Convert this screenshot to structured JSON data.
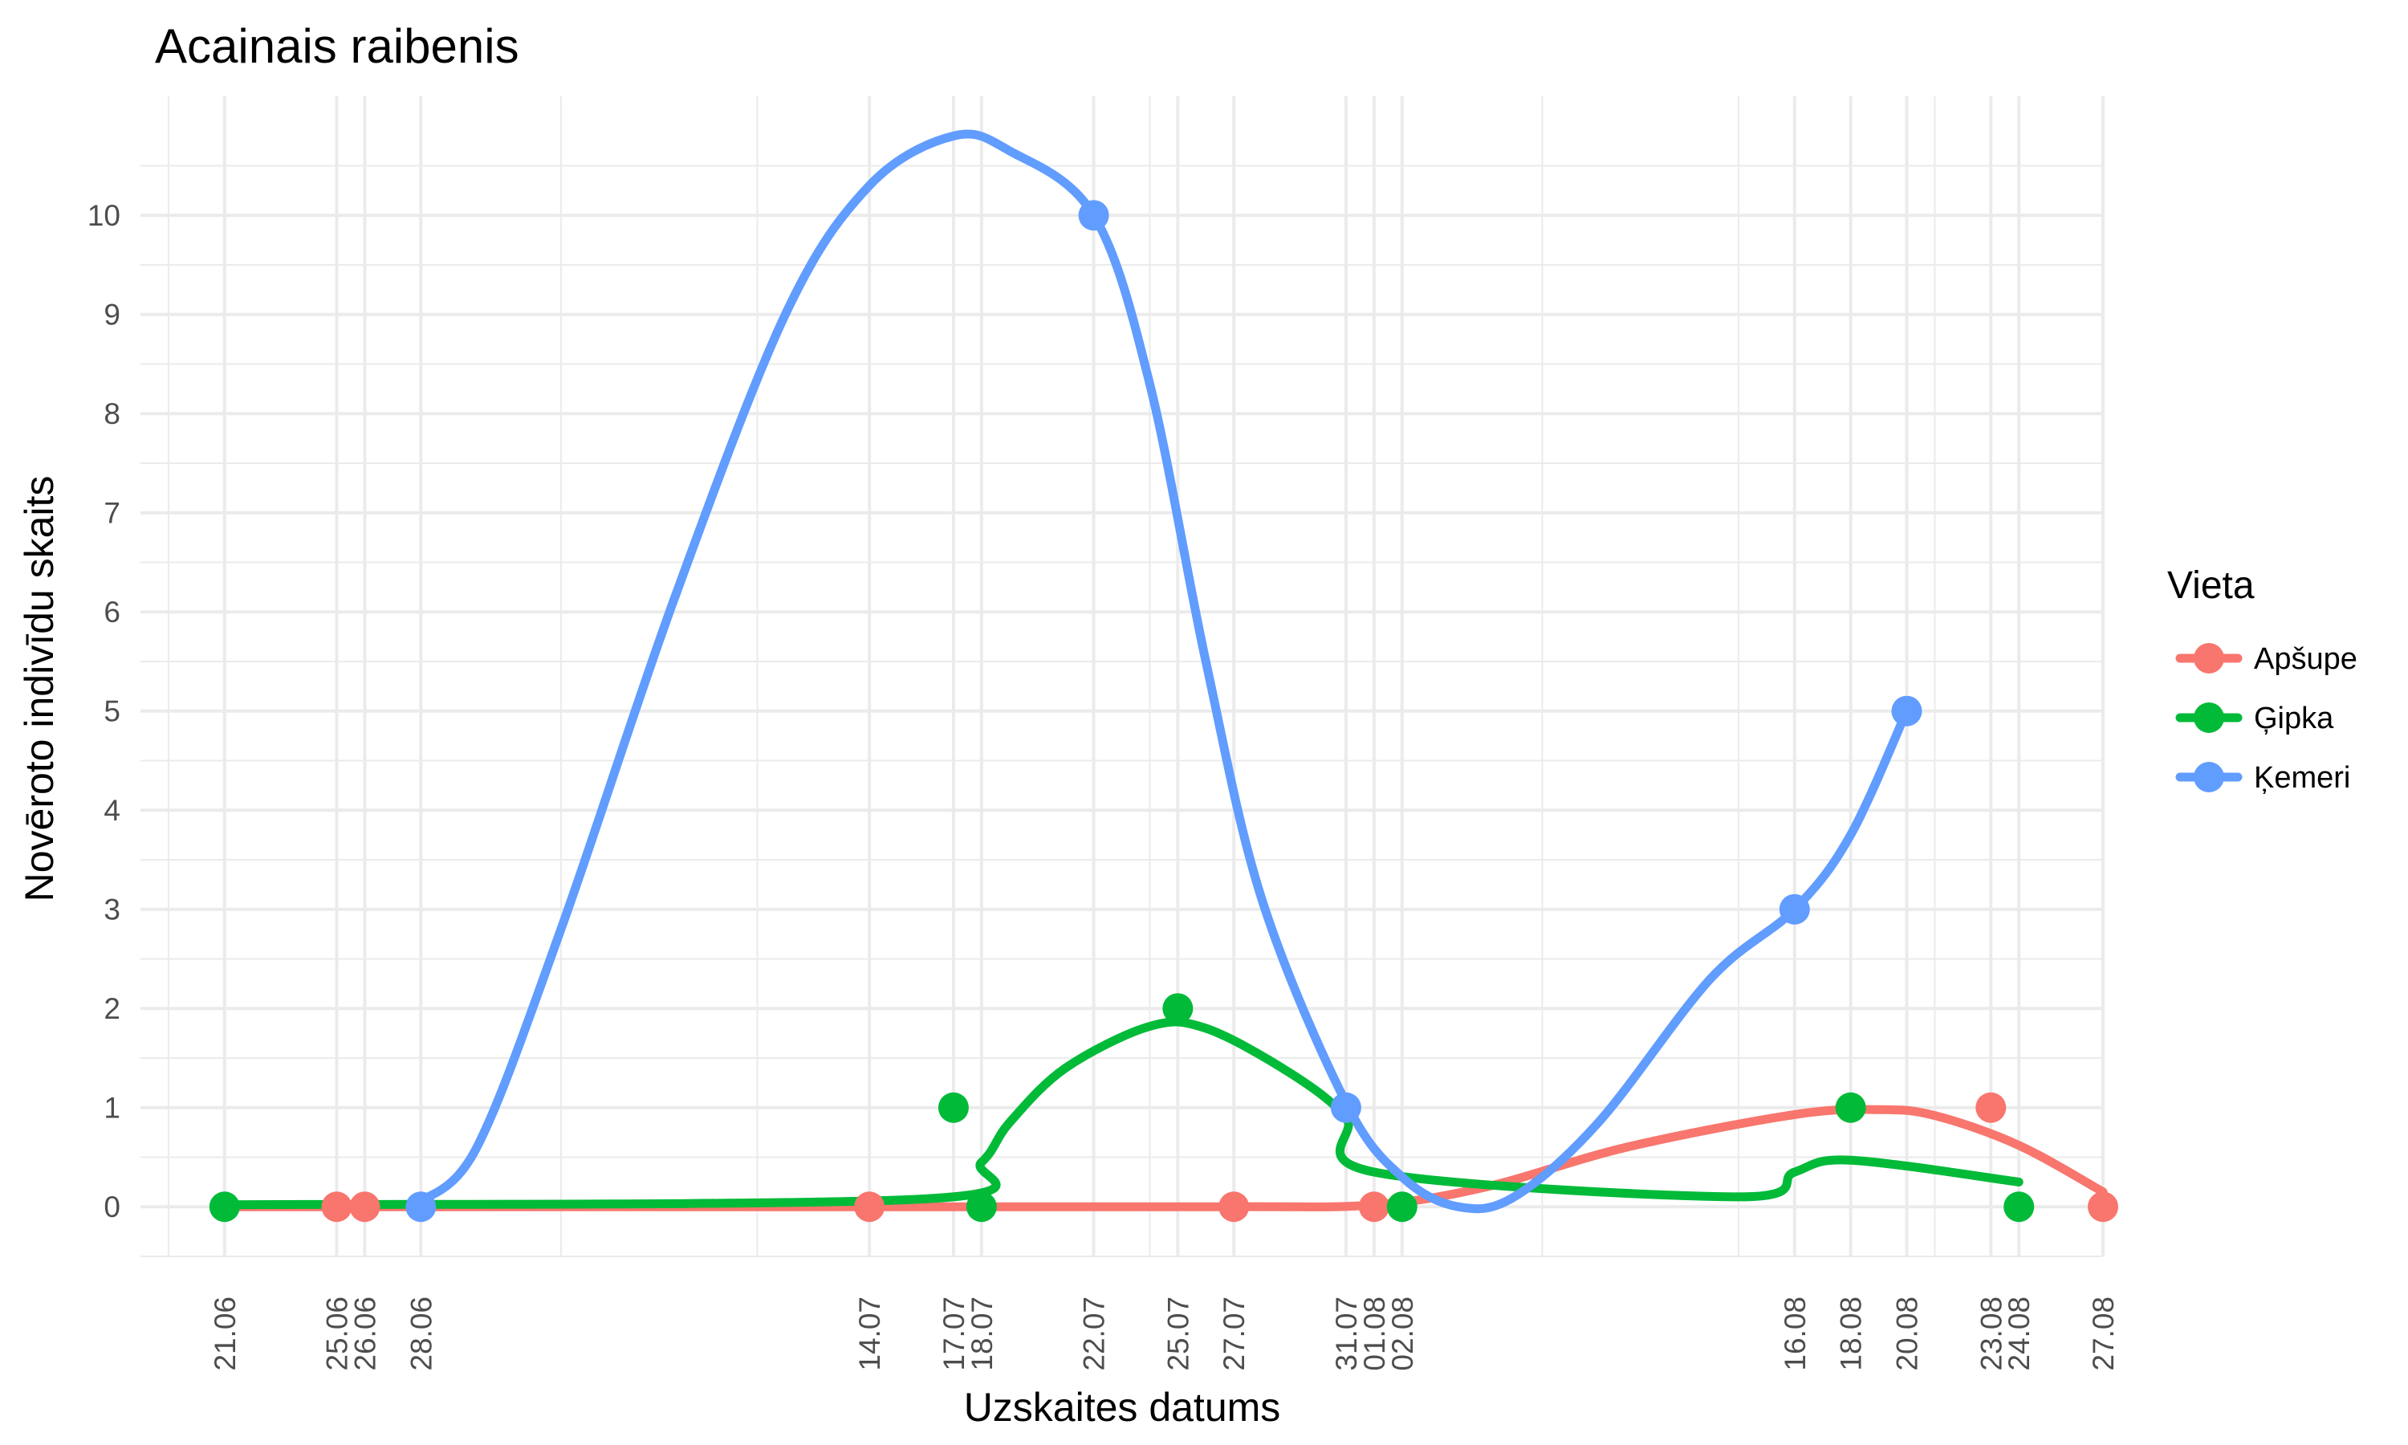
{
  "chart_data": {
    "type": "line",
    "title": "Acainais raibenis",
    "xlabel": "Uzskaites datums",
    "ylabel": "Novēroto indivīdu skaits",
    "ylim": [
      -0.5,
      11.2
    ],
    "y_ticks": [
      0,
      1,
      2,
      3,
      4,
      5,
      6,
      7,
      8,
      9,
      10
    ],
    "x_ticks": [
      "21.06",
      "25.06",
      "26.06",
      "28.06",
      "14.07",
      "17.07",
      "18.07",
      "22.07",
      "25.07",
      "27.07",
      "31.07",
      "01.08",
      "02.08",
      "16.08",
      "18.08",
      "20.08",
      "23.08",
      "24.08",
      "27.08"
    ],
    "grid": true,
    "legend": {
      "title": "Vieta",
      "position": "right"
    },
    "series": [
      {
        "name": "Apšupe",
        "color": "#F8766D",
        "points": [
          {
            "date": "25.06",
            "value": 0
          },
          {
            "date": "26.06",
            "value": 0
          },
          {
            "date": "14.07",
            "value": 0
          },
          {
            "date": "27.07",
            "value": 0
          },
          {
            "date": "01.08",
            "value": 0
          },
          {
            "date": "23.08",
            "value": 1
          },
          {
            "date": "27.08",
            "value": 0
          }
        ],
        "trend": [
          {
            "date": "21.06",
            "value": 0
          },
          {
            "date": "28.06",
            "value": 0
          },
          {
            "date": "14.07",
            "value": 0
          },
          {
            "date": "27.07",
            "value": 0
          },
          {
            "date": "01.08",
            "value": 0.02
          },
          {
            "date": "05.08",
            "value": 0.2
          },
          {
            "date": "10.08",
            "value": 0.6
          },
          {
            "date": "16.08",
            "value": 0.93
          },
          {
            "date": "19.08",
            "value": 0.98
          },
          {
            "date": "21.08",
            "value": 0.92
          },
          {
            "date": "24.08",
            "value": 0.62
          },
          {
            "date": "27.08",
            "value": 0.15
          }
        ]
      },
      {
        "name": "Ģipka",
        "color": "#00BA38",
        "points": [
          {
            "date": "21.06",
            "value": 0
          },
          {
            "date": "17.07",
            "value": 1
          },
          {
            "date": "18.07",
            "value": 0
          },
          {
            "date": "25.07",
            "value": 2
          },
          {
            "date": "02.08",
            "value": 0
          },
          {
            "date": "18.08",
            "value": 1
          },
          {
            "date": "24.08",
            "value": 0
          }
        ],
        "trend": [
          {
            "date": "21.06",
            "value": 0.02
          },
          {
            "date": "16.07",
            "value": 0.08
          },
          {
            "date": "18.07",
            "value": 0.45
          },
          {
            "date": "19.07",
            "value": 0.85
          },
          {
            "date": "21.07",
            "value": 1.4
          },
          {
            "date": "24.07",
            "value": 1.82
          },
          {
            "date": "26.07",
            "value": 1.8
          },
          {
            "date": "29.07",
            "value": 1.35
          },
          {
            "date": "31.07",
            "value": 0.9
          },
          {
            "date": "01.08",
            "value": 0.35
          },
          {
            "date": "14.08",
            "value": 0.1
          },
          {
            "date": "16.08",
            "value": 0.35
          },
          {
            "date": "18.08",
            "value": 0.47
          },
          {
            "date": "24.08",
            "value": 0.25
          }
        ]
      },
      {
        "name": "Ķemeri",
        "color": "#619CFF",
        "points": [
          {
            "date": "28.06",
            "value": 0
          },
          {
            "date": "22.07",
            "value": 10
          },
          {
            "date": "31.07",
            "value": 1
          },
          {
            "date": "16.08",
            "value": 3
          },
          {
            "date": "20.08",
            "value": 5
          }
        ],
        "trend": [
          {
            "date": "28.06",
            "value": 0.05
          },
          {
            "date": "30.06",
            "value": 0.6
          },
          {
            "date": "03.07",
            "value": 2.8
          },
          {
            "date": "07.07",
            "value": 6.1
          },
          {
            "date": "11.07",
            "value": 9.0
          },
          {
            "date": "14.07",
            "value": 10.3
          },
          {
            "date": "17.07",
            "value": 10.8
          },
          {
            "date": "19.07",
            "value": 10.65
          },
          {
            "date": "22.07",
            "value": 10.0
          },
          {
            "date": "24.07",
            "value": 8.3
          },
          {
            "date": "26.07",
            "value": 5.5
          },
          {
            "date": "28.07",
            "value": 3.1
          },
          {
            "date": "31.07",
            "value": 1.05
          },
          {
            "date": "02.08",
            "value": 0.3
          },
          {
            "date": "04.08",
            "value": 0.0
          },
          {
            "date": "06.08",
            "value": 0.1
          },
          {
            "date": "09.08",
            "value": 0.85
          },
          {
            "date": "13.08",
            "value": 2.3
          },
          {
            "date": "16.08",
            "value": 3.0
          },
          {
            "date": "18.08",
            "value": 3.75
          },
          {
            "date": "20.08",
            "value": 5.0
          }
        ]
      }
    ]
  }
}
